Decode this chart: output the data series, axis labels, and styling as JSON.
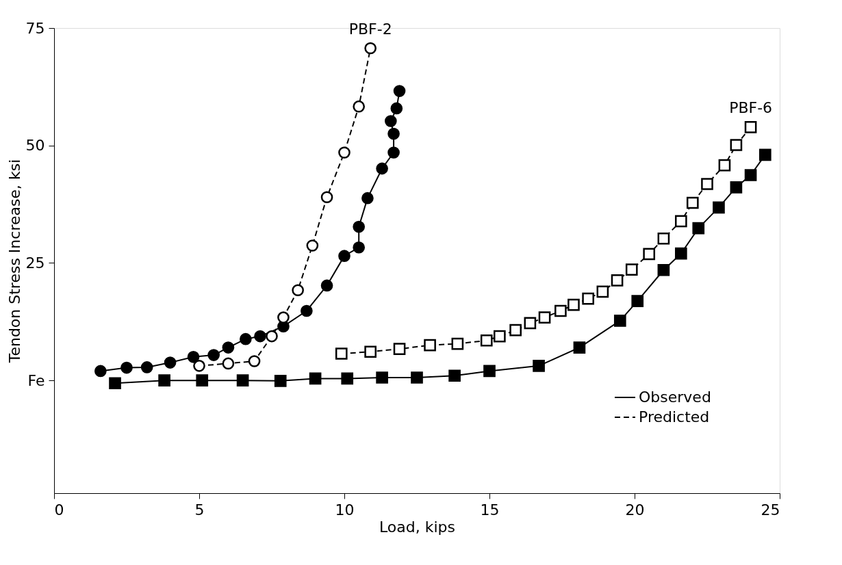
{
  "chart_data": {
    "type": "line",
    "xlabel": "Load, kips",
    "ylabel": "Tendon Stress Increase, ksi",
    "xlim": [
      0,
      25
    ],
    "xticks": [
      0,
      5,
      10,
      15,
      20,
      25
    ],
    "ylim": [
      -24,
      75
    ],
    "yticks": [
      {
        "value": 0,
        "label": "Fe"
      },
      25,
      50,
      75
    ],
    "grid": false,
    "legend": "bottom right",
    "series": [
      {
        "name": "Observed",
        "color": "#000000",
        "line_style": "solid",
        "marker": "circle",
        "x": [
          1.6,
          2.5,
          3.2,
          4.0,
          4.8,
          5.5,
          6.0,
          6.6,
          7.1,
          7.9,
          8.7,
          9.4,
          10.0,
          10.5,
          10.5,
          10.8,
          11.3,
          11.7,
          11.7,
          11.6,
          11.8,
          11.9
        ],
        "values": [
          2.0,
          2.7,
          2.8,
          3.8,
          5.0,
          5.4,
          7.0,
          8.8,
          9.4,
          11.5,
          14.8,
          20.2,
          26.5,
          28.3,
          32.7,
          38.8,
          45.1,
          48.5,
          52.5,
          55.2,
          57.9,
          61.6
        ]
      },
      {
        "name": "Predicted",
        "color": "#000000",
        "line_style": "dashed",
        "marker": "circle",
        "x": [
          5.0,
          6.0,
          6.9,
          7.5,
          7.9,
          8.4,
          8.9,
          9.4,
          10.0,
          10.5,
          10.9
        ],
        "values": [
          3.1,
          3.6,
          4.1,
          9.4,
          13.4,
          19.2,
          28.7,
          39.0,
          48.5,
          58.3,
          70.7
        ]
      },
      {
        "color": "#000000",
        "line_style": "solid",
        "marker": "square",
        "x": [
          2.1,
          3.8,
          5.1,
          6.5,
          7.8,
          9.0,
          10.1,
          11.3,
          12.5,
          13.8,
          15.0,
          16.7,
          18.1,
          19.5,
          20.1,
          21.0,
          21.6,
          22.2,
          22.9,
          23.5,
          24.0,
          24.5
        ],
        "values": [
          -0.6,
          0,
          0,
          0,
          -0.1,
          0.4,
          0.4,
          0.6,
          0.6,
          1.0,
          2.0,
          3.1,
          7.0,
          12.7,
          16.9,
          23.5,
          27.0,
          32.4,
          36.8,
          41.1,
          43.7,
          48.0
        ]
      },
      {
        "color": "#000000",
        "line_style": "dashed",
        "marker": "square",
        "x": [
          9.9,
          10.9,
          11.9,
          12.95,
          13.9,
          14.9,
          15.35,
          15.9,
          16.4,
          16.9,
          17.45,
          17.9,
          18.4,
          18.9,
          19.4,
          19.9,
          20.5,
          21.0,
          21.6,
          22.0,
          22.5,
          23.1,
          23.5,
          24.0
        ],
        "values": [
          5.7,
          6.1,
          6.7,
          7.5,
          7.8,
          8.5,
          9.4,
          10.7,
          12.2,
          13.4,
          14.8,
          16.1,
          17.4,
          18.9,
          21.3,
          23.6,
          26.9,
          30.2,
          33.9,
          37.8,
          41.8,
          45.8,
          50.1,
          53.9
        ]
      }
    ],
    "annotations": [
      "PBF-2",
      "PBF-6"
    ]
  }
}
